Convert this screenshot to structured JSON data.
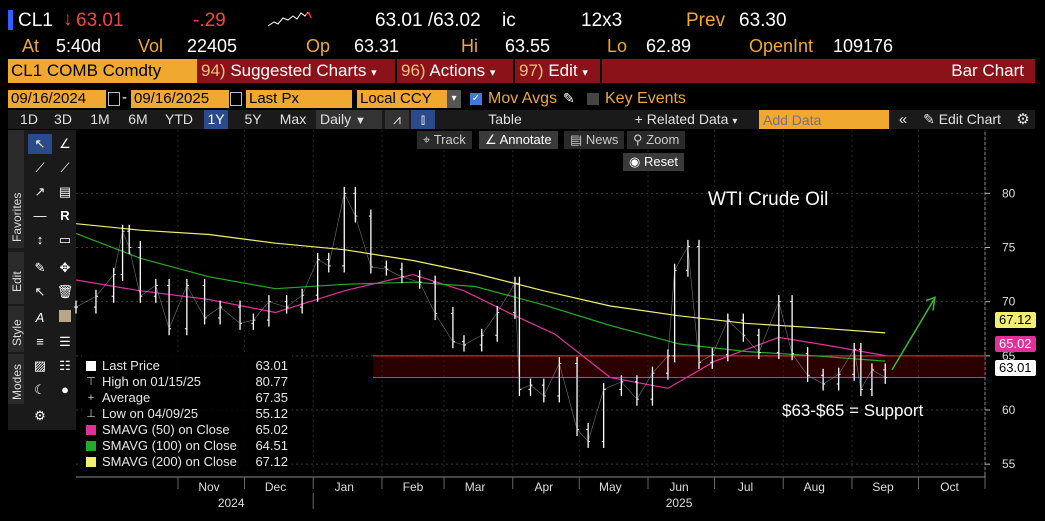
{
  "header": {
    "ticker": "CL1",
    "last": "63.01",
    "change": "-.29",
    "bid_ask": "63.01 /63.02",
    "bid_ask_suffix": "ic",
    "size": "12x3",
    "prev_label": "Prev",
    "prev": "63.30",
    "at_label": "At",
    "at_time": "5:40d",
    "vol_label": "Vol",
    "vol": "22405",
    "op_label": "Op",
    "op": "63.31",
    "hi_label": "Hi",
    "hi": "63.55",
    "lo_label": "Lo",
    "lo": "62.89",
    "openint_label": "OpenInt",
    "openint": "109176"
  },
  "menu": {
    "security": "CL1 COMB Comdty",
    "suggested_num": "94)",
    "suggested": "Suggested Charts",
    "actions_num": "96)",
    "actions": "Actions",
    "edit_num": "97)",
    "edit": "Edit",
    "chart_type": "Bar Chart"
  },
  "controls": {
    "start_date": "09/16/2024",
    "end_date": "09/16/2025",
    "field": "Last Px",
    "currency": "Local CCY",
    "mov_avgs": "Mov Avgs",
    "key_events": "Key Events"
  },
  "toolbar": {
    "periods": [
      "1D",
      "3D",
      "1M",
      "6M",
      "YTD",
      "1Y",
      "5Y",
      "Max"
    ],
    "selected_period": "1Y",
    "frequency": "Daily",
    "table": "Table",
    "related_data": "+ Related Data",
    "add_data_placeholder": "Add Data",
    "edit_chart": "Edit Chart"
  },
  "subtoolbar": {
    "track": "Track",
    "annotate": "Annotate",
    "news": "News",
    "zoom": "Zoom",
    "reset": "Reset"
  },
  "side_tabs": {
    "favorites": "Favorites",
    "edit": "Edit",
    "style": "Style",
    "modes": "Modes"
  },
  "colors": {
    "price": "#ffffff",
    "sma50": "#e0309a",
    "sma100": "#28a828",
    "sma200": "#f2ee70",
    "support": "#ff3030",
    "arrow": "#30c030",
    "accent": "#f0a830",
    "menu_bg": "#8b1218"
  },
  "legend": [
    {
      "label": "Last Price",
      "value": "63.01",
      "color": "#ffffff",
      "marker": "box"
    },
    {
      "label": "High on 01/15/25",
      "value": "80.77",
      "color": "",
      "marker": "high"
    },
    {
      "label": "Average",
      "value": "67.35",
      "color": "",
      "marker": "avg"
    },
    {
      "label": "Low on 04/09/25",
      "value": "55.12",
      "color": "",
      "marker": "low"
    },
    {
      "label": "SMAVG (50)  on Close",
      "value": "65.02",
      "color": "#e0309a",
      "marker": "box"
    },
    {
      "label": "SMAVG (100)  on Close",
      "value": "64.51",
      "color": "#28a828",
      "marker": "box"
    },
    {
      "label": "SMAVG (200)  on Close",
      "value": "67.12",
      "color": "#f2ee70",
      "marker": "box"
    }
  ],
  "right_tags": {
    "sma200": "67.12",
    "sma50": "65.02",
    "last": "63.01"
  },
  "chart_data": {
    "type": "bar",
    "title": "WTI Crude Oil",
    "annotation": "$63-$65 = Support",
    "support_band": [
      63,
      65
    ],
    "ylim": [
      54,
      84
    ],
    "yticks": [
      55,
      60,
      65,
      70,
      75,
      80
    ],
    "xticks": [
      "Nov",
      "Dec",
      "Jan",
      "Feb",
      "Mar",
      "Apr",
      "May",
      "Jun",
      "Jul",
      "Aug",
      "Sep",
      "Oct"
    ],
    "year_labels": [
      "2024",
      "2025"
    ],
    "x_start": "2024-09-16",
    "x_end": "2025-10-31",
    "series": [
      {
        "name": "Last Price",
        "points": [
          [
            "2024-09-16",
            69.5
          ],
          [
            "2024-09-25",
            70.5
          ],
          [
            "2024-10-03",
            72.5
          ],
          [
            "2024-10-07",
            76.5
          ],
          [
            "2024-10-10",
            75.0
          ],
          [
            "2024-10-15",
            70.5
          ],
          [
            "2024-10-22",
            71.5
          ],
          [
            "2024-10-28",
            67.5
          ],
          [
            "2024-11-05",
            71.5
          ],
          [
            "2024-11-13",
            68.5
          ],
          [
            "2024-11-20",
            69.5
          ],
          [
            "2024-11-29",
            68.0
          ],
          [
            "2024-12-05",
            68.3
          ],
          [
            "2024-12-12",
            70.0
          ],
          [
            "2024-12-20",
            69.5
          ],
          [
            "2024-12-27",
            70.6
          ],
          [
            "2025-01-03",
            73.9
          ],
          [
            "2025-01-08",
            73.3
          ],
          [
            "2025-01-15",
            80.0
          ],
          [
            "2025-01-20",
            77.9
          ],
          [
            "2025-01-27",
            73.2
          ],
          [
            "2025-02-03",
            73.0
          ],
          [
            "2025-02-10",
            72.3
          ],
          [
            "2025-02-18",
            71.8
          ],
          [
            "2025-02-25",
            68.9
          ],
          [
            "2025-03-05",
            66.3
          ],
          [
            "2025-03-10",
            66.0
          ],
          [
            "2025-03-18",
            66.9
          ],
          [
            "2025-03-25",
            69.0
          ],
          [
            "2025-04-02",
            71.7
          ],
          [
            "2025-04-04",
            61.9
          ],
          [
            "2025-04-09",
            62.3
          ],
          [
            "2025-04-15",
            61.3
          ],
          [
            "2025-04-22",
            64.3
          ],
          [
            "2025-04-30",
            58.2
          ],
          [
            "2025-05-05",
            57.1
          ],
          [
            "2025-05-12",
            61.9
          ],
          [
            "2025-05-20",
            62.6
          ],
          [
            "2025-05-27",
            61.0
          ],
          [
            "2025-06-03",
            63.4
          ],
          [
            "2025-06-10",
            65.0
          ],
          [
            "2025-06-13",
            72.9
          ],
          [
            "2025-06-19",
            75.1
          ],
          [
            "2025-06-24",
            64.4
          ],
          [
            "2025-06-30",
            65.1
          ],
          [
            "2025-07-07",
            68.3
          ],
          [
            "2025-07-14",
            66.9
          ],
          [
            "2025-07-21",
            65.3
          ],
          [
            "2025-07-30",
            70.0
          ],
          [
            "2025-08-05",
            65.2
          ],
          [
            "2025-08-12",
            63.2
          ],
          [
            "2025-08-19",
            62.4
          ],
          [
            "2025-08-26",
            63.3
          ],
          [
            "2025-09-02",
            65.6
          ],
          [
            "2025-09-05",
            61.9
          ],
          [
            "2025-09-10",
            63.7
          ],
          [
            "2025-09-16",
            63.01
          ]
        ]
      },
      {
        "name": "SMAVG (50)",
        "points": [
          [
            "2024-09-16",
            72.0
          ],
          [
            "2024-10-15",
            71.0
          ],
          [
            "2024-11-15",
            70.2
          ],
          [
            "2024-12-15",
            69.0
          ],
          [
            "2025-01-15",
            71.0
          ],
          [
            "2025-02-15",
            72.5
          ],
          [
            "2025-03-10",
            71.0
          ],
          [
            "2025-04-01",
            68.8
          ],
          [
            "2025-04-20",
            67.0
          ],
          [
            "2025-05-15",
            63.0
          ],
          [
            "2025-06-10",
            62.0
          ],
          [
            "2025-07-01",
            64.5
          ],
          [
            "2025-07-30",
            66.7
          ],
          [
            "2025-08-20",
            66.0
          ],
          [
            "2025-09-16",
            65.02
          ]
        ]
      },
      {
        "name": "SMAVG (100)",
        "points": [
          [
            "2024-09-16",
            76.3
          ],
          [
            "2024-10-15",
            74.0
          ],
          [
            "2024-11-15",
            72.3
          ],
          [
            "2024-12-15",
            71.2
          ],
          [
            "2025-01-15",
            71.6
          ],
          [
            "2025-02-15",
            71.8
          ],
          [
            "2025-03-15",
            71.4
          ],
          [
            "2025-04-15",
            69.7
          ],
          [
            "2025-05-15",
            67.8
          ],
          [
            "2025-06-15",
            66.1
          ],
          [
            "2025-07-15",
            65.4
          ],
          [
            "2025-08-15",
            65.0
          ],
          [
            "2025-09-16",
            64.51
          ]
        ]
      },
      {
        "name": "SMAVG (200)",
        "points": [
          [
            "2024-09-16",
            77.2
          ],
          [
            "2024-10-15",
            76.6
          ],
          [
            "2024-11-15",
            76.2
          ],
          [
            "2024-12-15",
            75.4
          ],
          [
            "2025-01-15",
            74.8
          ],
          [
            "2025-02-15",
            73.8
          ],
          [
            "2025-03-15",
            72.6
          ],
          [
            "2025-04-15",
            71.0
          ],
          [
            "2025-05-15",
            69.6
          ],
          [
            "2025-06-15",
            68.7
          ],
          [
            "2025-07-15",
            68.0
          ],
          [
            "2025-08-15",
            67.6
          ],
          [
            "2025-09-16",
            67.12
          ]
        ]
      }
    ]
  }
}
